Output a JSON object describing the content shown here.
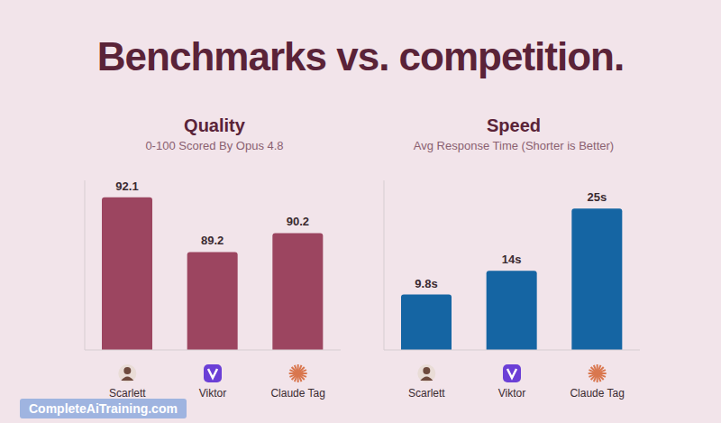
{
  "title": "Benchmarks vs. competition.",
  "watermark": "CompleteAiTraining.com",
  "chart_data": [
    {
      "type": "bar",
      "title": "Quality",
      "subtitle": "0-100 Scored By Opus 4.8",
      "categories": [
        "Scarlett",
        "Viktor",
        "Claude Tag"
      ],
      "values": [
        92.1,
        89.2,
        90.2
      ],
      "color": "#9c4560",
      "ylim": [
        84,
        93
      ],
      "data_labels": true,
      "tick_labels": "x",
      "grid": false
    },
    {
      "type": "bar",
      "title": "Speed",
      "subtitle": "Avg Response Time (Shorter is Better)",
      "categories": [
        "Scarlett",
        "Viktor",
        "Claude Tag"
      ],
      "values": [
        9.8,
        14,
        25
      ],
      "value_labels": [
        "9.8s",
        "14s",
        "25s"
      ],
      "color": "#1565a3",
      "ylim": [
        0,
        30
      ],
      "data_labels": true,
      "tick_labels": "x",
      "grid": false
    }
  ]
}
